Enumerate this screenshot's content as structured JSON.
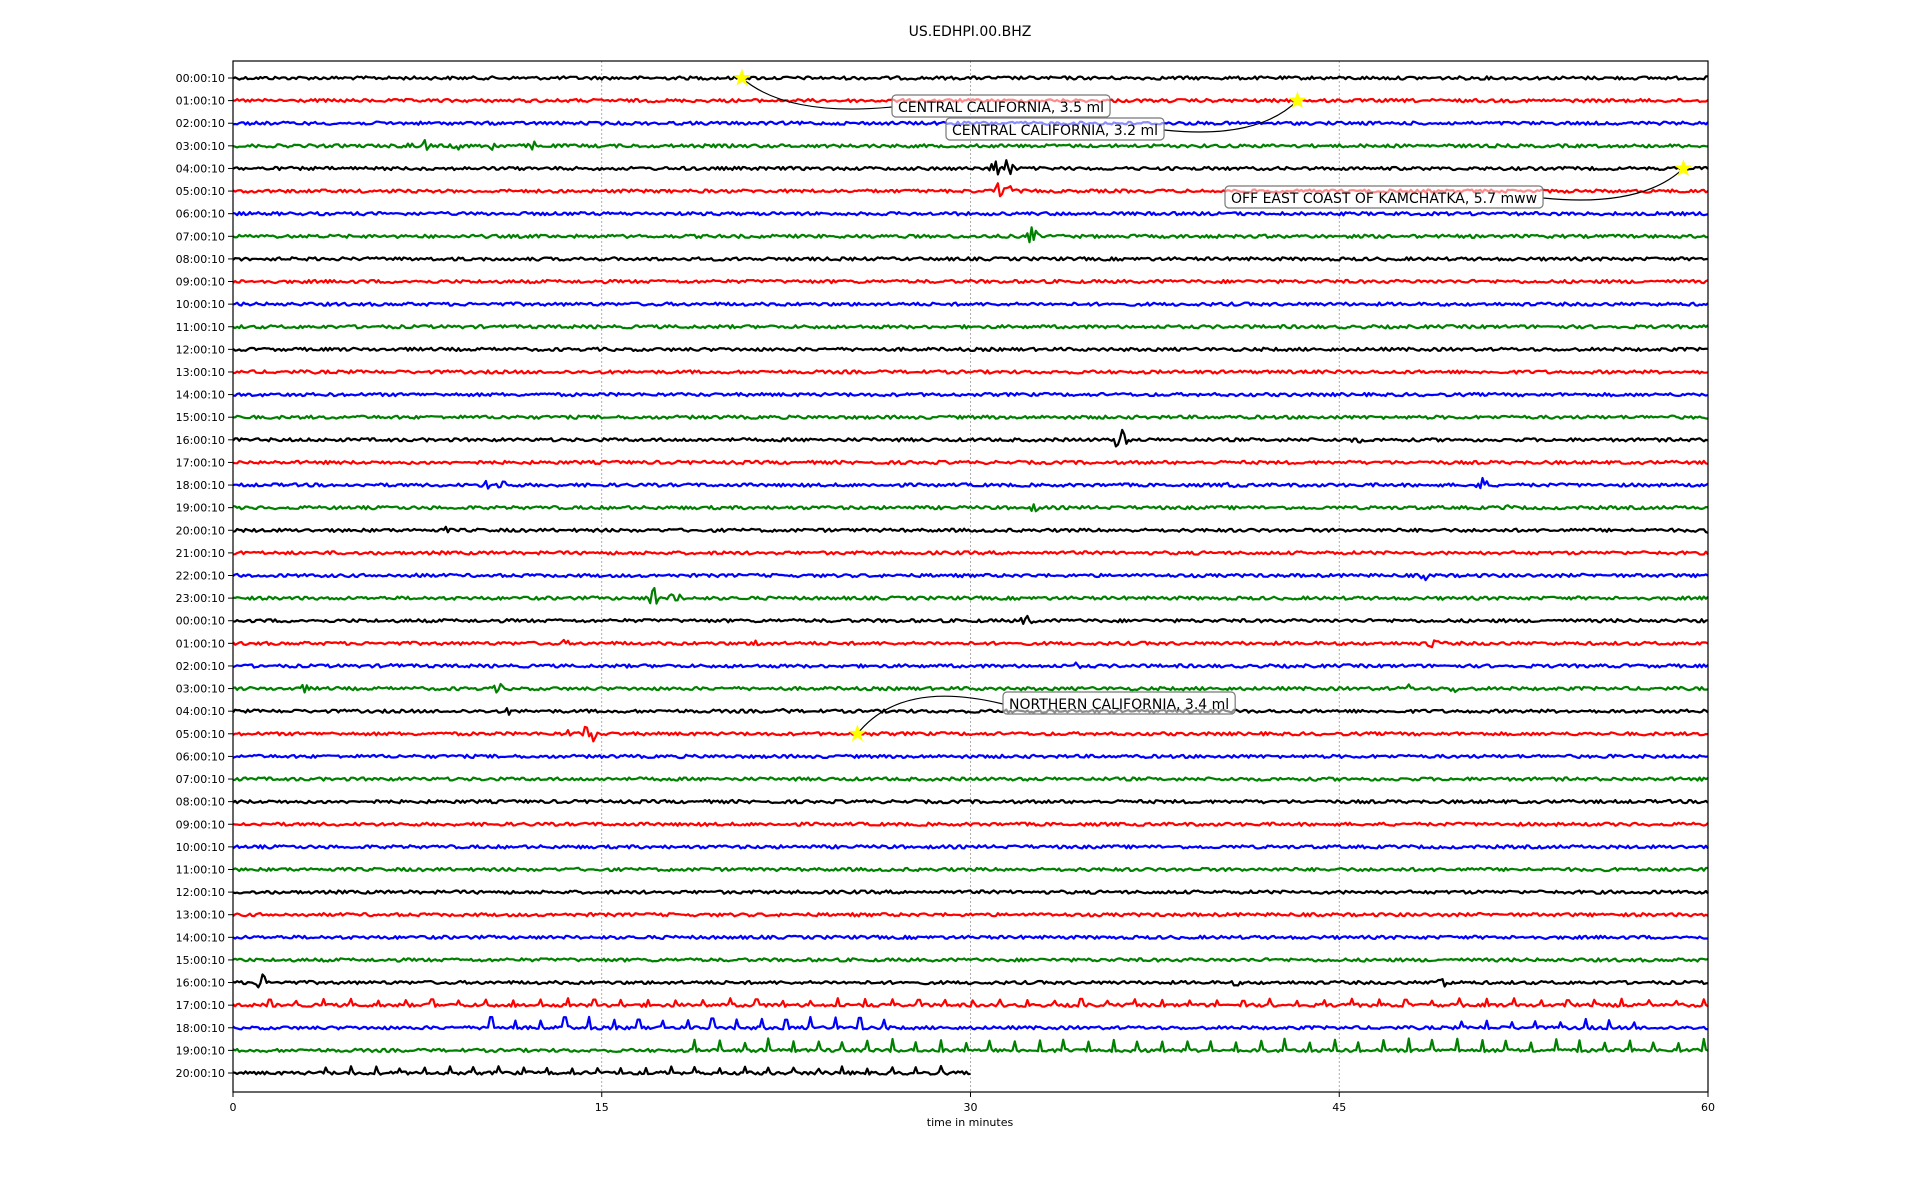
{
  "chart_data": {
    "type": "line",
    "title": "US.EDHPI.00.BHZ",
    "xlabel": "time in minutes",
    "ylabel": "",
    "xlim": [
      0,
      60
    ],
    "xticks": [
      "0",
      "15",
      "30",
      "45",
      "60"
    ],
    "xtick_values": [
      0,
      15,
      30,
      45,
      60
    ],
    "grid": "vertical dotted at 15-minute ticks",
    "colors": [
      "#000000",
      "#ff0000",
      "#0000ff",
      "#008000"
    ],
    "rows": [
      "00:00:10",
      "01:00:10",
      "02:00:10",
      "03:00:10",
      "04:00:10",
      "05:00:10",
      "06:00:10",
      "07:00:10",
      "08:00:10",
      "09:00:10",
      "10:00:10",
      "11:00:10",
      "12:00:10",
      "13:00:10",
      "14:00:10",
      "15:00:10",
      "16:00:10",
      "17:00:10",
      "18:00:10",
      "19:00:10",
      "20:00:10",
      "21:00:10",
      "22:00:10",
      "23:00:10",
      "00:00:10",
      "01:00:10",
      "02:00:10",
      "03:00:10",
      "04:00:10",
      "05:00:10",
      "06:00:10",
      "07:00:10",
      "08:00:10",
      "09:00:10",
      "10:00:10",
      "11:00:10",
      "12:00:10",
      "13:00:10",
      "14:00:10",
      "15:00:10",
      "16:00:10",
      "17:00:10",
      "18:00:10",
      "19:00:10",
      "20:00:10"
    ],
    "last_row_end_minute": 30,
    "signal_events": [
      {
        "row": 3,
        "minute": 7.1,
        "amp": 6
      },
      {
        "row": 3,
        "minute": 7.8,
        "amp": 7
      },
      {
        "row": 3,
        "minute": 9.1,
        "amp": 6
      },
      {
        "row": 3,
        "minute": 10.5,
        "amp": 8
      },
      {
        "row": 3,
        "minute": 12.2,
        "amp": 6
      },
      {
        "row": 4,
        "minute": 31.0,
        "amp": 10
      },
      {
        "row": 4,
        "minute": 31.5,
        "amp": 14
      },
      {
        "row": 5,
        "minute": 31.2,
        "amp": 12
      },
      {
        "row": 5,
        "minute": 31.6,
        "amp": 8
      },
      {
        "row": 7,
        "minute": 32.5,
        "amp": 10
      },
      {
        "row": 15,
        "minute": 11.2,
        "amp": 4
      },
      {
        "row": 16,
        "minute": 36.1,
        "amp": 16
      },
      {
        "row": 16,
        "minute": 45.7,
        "amp": 5
      },
      {
        "row": 18,
        "minute": 10.3,
        "amp": 6
      },
      {
        "row": 18,
        "minute": 11.0,
        "amp": 8
      },
      {
        "row": 18,
        "minute": 50.8,
        "amp": 9
      },
      {
        "row": 18,
        "minute": 40.6,
        "amp": 5
      },
      {
        "row": 19,
        "minute": 32.6,
        "amp": 5
      },
      {
        "row": 19,
        "minute": 51.8,
        "amp": 4
      },
      {
        "row": 20,
        "minute": 8.7,
        "amp": 4
      },
      {
        "row": 20,
        "minute": 59.8,
        "amp": 6
      },
      {
        "row": 22,
        "minute": 7.5,
        "amp": 5
      },
      {
        "row": 22,
        "minute": 48.5,
        "amp": 5
      },
      {
        "row": 23,
        "minute": 17.1,
        "amp": 14
      },
      {
        "row": 23,
        "minute": 18.0,
        "amp": 9
      },
      {
        "row": 24,
        "minute": 32.3,
        "amp": 9
      },
      {
        "row": 25,
        "minute": 48.8,
        "amp": 7
      },
      {
        "row": 25,
        "minute": 21.4,
        "amp": 6
      },
      {
        "row": 25,
        "minute": 13.5,
        "amp": 4
      },
      {
        "row": 26,
        "minute": 34.3,
        "amp": 4
      },
      {
        "row": 26,
        "minute": 6.5,
        "amp": 4
      },
      {
        "row": 27,
        "minute": 2.9,
        "amp": 5
      },
      {
        "row": 27,
        "minute": 10.8,
        "amp": 6
      },
      {
        "row": 27,
        "minute": 47.8,
        "amp": 5
      },
      {
        "row": 27,
        "minute": 49.7,
        "amp": 5
      },
      {
        "row": 28,
        "minute": 11.2,
        "amp": 4
      },
      {
        "row": 28,
        "minute": 22.5,
        "amp": 4
      },
      {
        "row": 29,
        "minute": 14.5,
        "amp": 18
      },
      {
        "row": 29,
        "minute": 13.6,
        "amp": 5
      },
      {
        "row": 29,
        "minute": 25.8,
        "amp": 4
      },
      {
        "row": 40,
        "minute": 1.2,
        "amp": 11
      },
      {
        "row": 40,
        "minute": 49.2,
        "amp": 9
      },
      {
        "row": 40,
        "minute": 40.8,
        "amp": 4
      }
    ],
    "periodic_spikes": [
      {
        "row": 41,
        "from": 1.5,
        "to": 60,
        "step": 1.1,
        "amp": 7
      },
      {
        "row": 42,
        "from": 10.5,
        "to": 27,
        "step": 1.0,
        "amp": 11
      },
      {
        "row": 42,
        "from": 50,
        "to": 57,
        "step": 1.0,
        "amp": 9
      },
      {
        "row": 43,
        "from": 18.8,
        "to": 60,
        "step": 1.0,
        "amp": 12
      },
      {
        "row": 44,
        "from": 3.8,
        "to": 29,
        "step": 1.0,
        "amp": 7
      }
    ],
    "annotations": [
      {
        "text": "CENTRAL CALIFORNIA, 3.5 ml",
        "row": 0,
        "minute": 20.7
      },
      {
        "text": "CENTRAL CALIFORNIA, 3.2 ml",
        "row": 1,
        "minute": 43.3
      },
      {
        "text": "OFF EAST COAST OF KAMCHATKA, 5.7 mww",
        "row": 4,
        "minute": 59.0
      },
      {
        "text": "NORTHERN CALIFORNIA, 3.4 ml",
        "row": 29,
        "minute": 25.4
      }
    ],
    "marker_color": "#ffff00"
  }
}
